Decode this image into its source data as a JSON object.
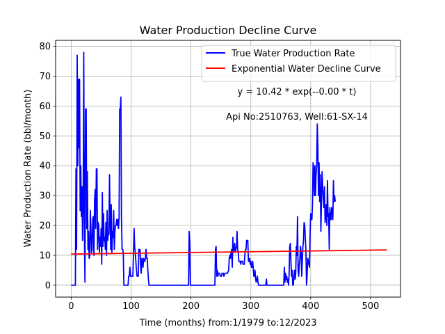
{
  "chart_data": {
    "type": "line",
    "title": "Water Production Decline Curve",
    "xlabel": "Time (months) from:1/1979 to:12/2023",
    "ylabel": "Water Production Rate (bbl/month)",
    "xlim": [
      -26,
      550
    ],
    "ylim": [
      -4,
      82
    ],
    "xticks": [
      0,
      100,
      200,
      300,
      400,
      500
    ],
    "yticks": [
      0,
      10,
      20,
      30,
      40,
      50,
      60,
      70,
      80
    ],
    "grid": true,
    "legend": "top-right",
    "annotations": [
      "y = 10.42 * exp(--0.00 * t)",
      "Api No:2510763, Well:61-SX-14"
    ],
    "series": [
      {
        "name": "True Water Production Rate",
        "color": "#0000ff",
        "points": [
          [
            0,
            0
          ],
          [
            7,
            0
          ],
          [
            8,
            39
          ],
          [
            9,
            12
          ],
          [
            10,
            77
          ],
          [
            11,
            40
          ],
          [
            12,
            69
          ],
          [
            13,
            46
          ],
          [
            14,
            69
          ],
          [
            15,
            25
          ],
          [
            16,
            40
          ],
          [
            17,
            23
          ],
          [
            18,
            33
          ],
          [
            19,
            15
          ],
          [
            20,
            28
          ],
          [
            21,
            78
          ],
          [
            22,
            20
          ],
          [
            23,
            1
          ],
          [
            24,
            59
          ],
          [
            25,
            59
          ],
          [
            26,
            19
          ],
          [
            27,
            38
          ],
          [
            28,
            12
          ],
          [
            29,
            18
          ],
          [
            30,
            9
          ],
          [
            31,
            10
          ],
          [
            32,
            25
          ],
          [
            33,
            19
          ],
          [
            34,
            11
          ],
          [
            35,
            12
          ],
          [
            36,
            22
          ],
          [
            37,
            23
          ],
          [
            38,
            10
          ],
          [
            39,
            28
          ],
          [
            40,
            32
          ],
          [
            41,
            19
          ],
          [
            42,
            39
          ],
          [
            43,
            39
          ],
          [
            44,
            12
          ],
          [
            45,
            21
          ],
          [
            46,
            20
          ],
          [
            47,
            11
          ],
          [
            48,
            16
          ],
          [
            49,
            13
          ],
          [
            50,
            19
          ],
          [
            51,
            7
          ],
          [
            52,
            31
          ],
          [
            53,
            13
          ],
          [
            54,
            24
          ],
          [
            55,
            15
          ],
          [
            56,
            16
          ],
          [
            57,
            12
          ],
          [
            58,
            21
          ],
          [
            59,
            10
          ],
          [
            60,
            25
          ],
          [
            61,
            15
          ],
          [
            62,
            17
          ],
          [
            63,
            17
          ],
          [
            64,
            37
          ],
          [
            65,
            22
          ],
          [
            66,
            12
          ],
          [
            67,
            27
          ],
          [
            68,
            11
          ],
          [
            69,
            18
          ],
          [
            70,
            16
          ],
          [
            71,
            25
          ],
          [
            72,
            12
          ],
          [
            73,
            18
          ],
          [
            74,
            20
          ],
          [
            75,
            20
          ],
          [
            76,
            22
          ],
          [
            77,
            20
          ],
          [
            78,
            22
          ],
          [
            79,
            19
          ],
          [
            80,
            23
          ],
          [
            81,
            59
          ],
          [
            82,
            59
          ],
          [
            83,
            63
          ],
          [
            84,
            22
          ],
          [
            85,
            12
          ],
          [
            86,
            12
          ],
          [
            87,
            11
          ],
          [
            88,
            0
          ],
          [
            95,
            0
          ],
          [
            96,
            3
          ],
          [
            97,
            3
          ],
          [
            98,
            6
          ],
          [
            99,
            3
          ],
          [
            101,
            3
          ],
          [
            103,
            3
          ],
          [
            104,
            10
          ],
          [
            105,
            19
          ],
          [
            106,
            13
          ],
          [
            107,
            11
          ],
          [
            108,
            8
          ],
          [
            109,
            5
          ],
          [
            110,
            3
          ],
          [
            111,
            3
          ],
          [
            112,
            3
          ],
          [
            113,
            12
          ],
          [
            114,
            11
          ],
          [
            115,
            12
          ],
          [
            116,
            6
          ],
          [
            117,
            4
          ],
          [
            118,
            9
          ],
          [
            119,
            8
          ],
          [
            120,
            6
          ],
          [
            121,
            9
          ],
          [
            122,
            8
          ],
          [
            123,
            8
          ],
          [
            124,
            9
          ],
          [
            125,
            12
          ],
          [
            126,
            9
          ],
          [
            127,
            9
          ],
          [
            128,
            5
          ],
          [
            129,
            2
          ],
          [
            130,
            0
          ],
          [
            196,
            0
          ],
          [
            197,
            18
          ],
          [
            198,
            14
          ],
          [
            199,
            0
          ],
          [
            240,
            0
          ],
          [
            241,
            12
          ],
          [
            242,
            13
          ],
          [
            243,
            3
          ],
          [
            244,
            5
          ],
          [
            245,
            3
          ],
          [
            246,
            4
          ],
          [
            248,
            4
          ],
          [
            249,
            3
          ],
          [
            251,
            3
          ],
          [
            252,
            4
          ],
          [
            254,
            4
          ],
          [
            255,
            3
          ],
          [
            257,
            4
          ],
          [
            258,
            4
          ],
          [
            260,
            4
          ],
          [
            261,
            4
          ],
          [
            263,
            5
          ],
          [
            264,
            9
          ],
          [
            265,
            10
          ],
          [
            266,
            9
          ],
          [
            267,
            11
          ],
          [
            268,
            12
          ],
          [
            269,
            6
          ],
          [
            270,
            16
          ],
          [
            271,
            11
          ],
          [
            272,
            12
          ],
          [
            273,
            14
          ],
          [
            274,
            11
          ],
          [
            275,
            12
          ],
          [
            276,
            13
          ],
          [
            277,
            18
          ],
          [
            278,
            12
          ],
          [
            279,
            11
          ],
          [
            280,
            8
          ],
          [
            282,
            8
          ],
          [
            283,
            7
          ],
          [
            284,
            8
          ],
          [
            286,
            8
          ],
          [
            287,
            7
          ],
          [
            289,
            7
          ],
          [
            290,
            10
          ],
          [
            291,
            12
          ],
          [
            292,
            12
          ],
          [
            293,
            15
          ],
          [
            294,
            15
          ],
          [
            295,
            15
          ],
          [
            296,
            8
          ],
          [
            297,
            8
          ],
          [
            298,
            9
          ],
          [
            299,
            7
          ],
          [
            300,
            8
          ],
          [
            301,
            6
          ],
          [
            302,
            6
          ],
          [
            303,
            8
          ],
          [
            304,
            6
          ],
          [
            305,
            3
          ],
          [
            306,
            3
          ],
          [
            307,
            5
          ],
          [
            308,
            2
          ],
          [
            309,
            1
          ],
          [
            310,
            2
          ],
          [
            311,
            3
          ],
          [
            312,
            1
          ],
          [
            313,
            0
          ],
          [
            325,
            0
          ],
          [
            326,
            2
          ],
          [
            327,
            0
          ],
          [
            355,
            0
          ],
          [
            356,
            6
          ],
          [
            357,
            1
          ],
          [
            358,
            4
          ],
          [
            359,
            2
          ],
          [
            360,
            3
          ],
          [
            361,
            1
          ],
          [
            362,
            2
          ],
          [
            363,
            0
          ],
          [
            364,
            4
          ],
          [
            365,
            13
          ],
          [
            366,
            14
          ],
          [
            367,
            8
          ],
          [
            368,
            3
          ],
          [
            369,
            5
          ],
          [
            370,
            0
          ],
          [
            371,
            0
          ],
          [
            372,
            3
          ],
          [
            373,
            5
          ],
          [
            374,
            2
          ],
          [
            375,
            4
          ],
          [
            376,
            13
          ],
          [
            377,
            10
          ],
          [
            378,
            23
          ],
          [
            379,
            5
          ],
          [
            380,
            3
          ],
          [
            381,
            7
          ],
          [
            382,
            9
          ],
          [
            383,
            13
          ],
          [
            384,
            11
          ],
          [
            385,
            3
          ],
          [
            386,
            8
          ],
          [
            387,
            13
          ],
          [
            388,
            15
          ],
          [
            389,
            21
          ],
          [
            390,
            20
          ],
          [
            391,
            16
          ],
          [
            392,
            12
          ],
          [
            393,
            0
          ],
          [
            394,
            3
          ],
          [
            395,
            9
          ],
          [
            396,
            8
          ],
          [
            397,
            7
          ],
          [
            398,
            6
          ],
          [
            399,
            17
          ],
          [
            400,
            24
          ],
          [
            401,
            22
          ],
          [
            402,
            22
          ],
          [
            403,
            27
          ],
          [
            404,
            41
          ],
          [
            405,
            39
          ],
          [
            406,
            30
          ],
          [
            407,
            40
          ],
          [
            408,
            30
          ],
          [
            409,
            37
          ],
          [
            410,
            40
          ],
          [
            411,
            54
          ],
          [
            412,
            46
          ],
          [
            413,
            30
          ],
          [
            414,
            41
          ],
          [
            415,
            28
          ],
          [
            416,
            37
          ],
          [
            417,
            18
          ],
          [
            418,
            28
          ],
          [
            419,
            38
          ],
          [
            420,
            33
          ],
          [
            421,
            29
          ],
          [
            422,
            26
          ],
          [
            423,
            33
          ],
          [
            424,
            21
          ],
          [
            425,
            23
          ],
          [
            426,
            27
          ],
          [
            427,
            20
          ],
          [
            428,
            35
          ],
          [
            429,
            23
          ],
          [
            430,
            24
          ],
          [
            431,
            12
          ],
          [
            432,
            26
          ],
          [
            433,
            22
          ],
          [
            434,
            22
          ],
          [
            435,
            26
          ],
          [
            436,
            25
          ],
          [
            437,
            22
          ],
          [
            438,
            35
          ],
          [
            439,
            28
          ],
          [
            440,
            30
          ],
          [
            441,
            28
          ]
        ]
      },
      {
        "name": "Exponential Water Decline Curve",
        "color": "#ff0000",
        "points": [
          [
            0,
            10.42
          ],
          [
            527,
            11.8
          ]
        ]
      }
    ]
  }
}
